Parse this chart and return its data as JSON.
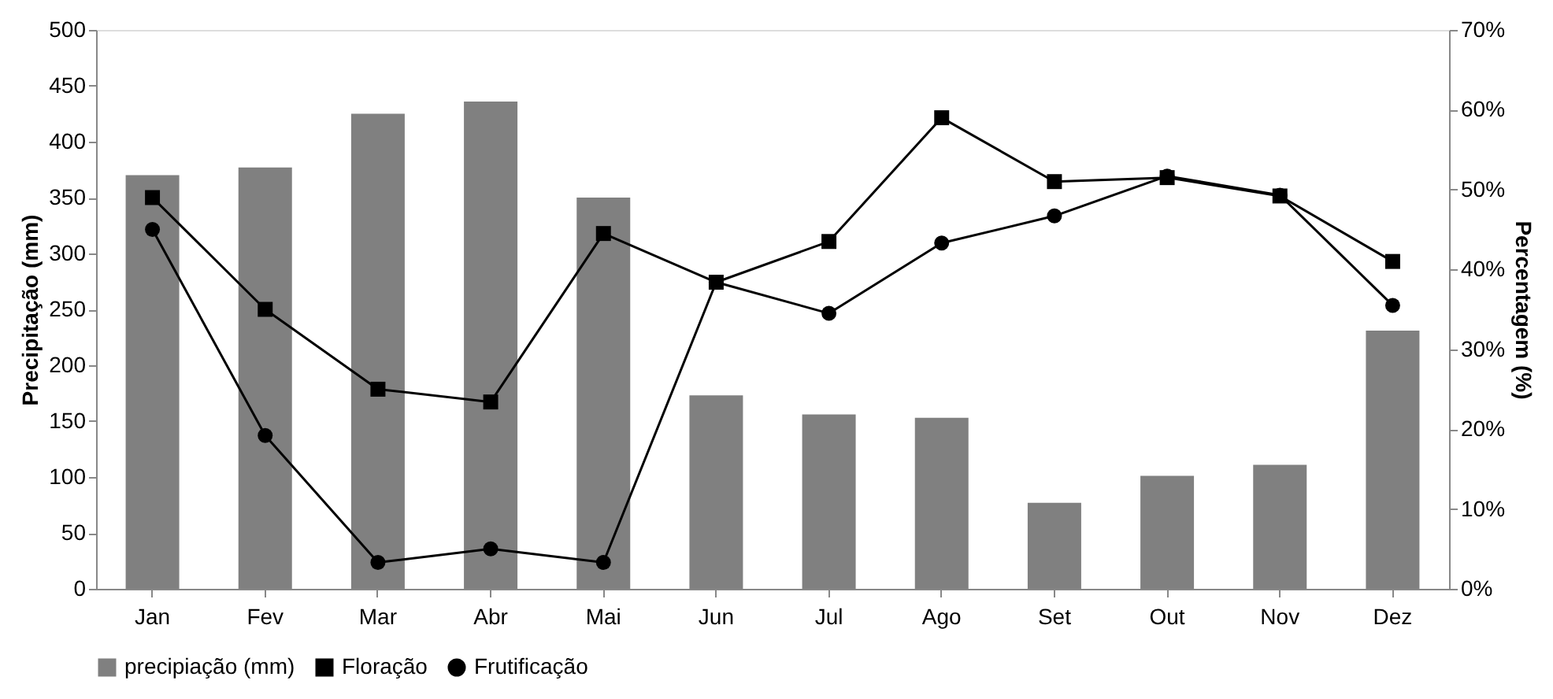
{
  "chart_data": {
    "type": "bar",
    "categories": [
      "Jan",
      "Fev",
      "Mar",
      "Abr",
      "Mai",
      "Jun",
      "Jul",
      "Ago",
      "Set",
      "Out",
      "Nov",
      "Dez"
    ],
    "series": [
      {
        "name": "precipiação (mm)",
        "color": "#808080",
        "values": [
          370,
          377,
          425,
          436,
          350,
          173,
          156,
          153,
          77,
          101,
          111,
          231
        ]
      },
      {
        "name": "Floração",
        "type": "line",
        "axis": "y2",
        "marker": "square",
        "color": "#000000",
        "values": [
          49,
          35,
          25,
          23.4,
          44.5,
          38.4,
          43.5,
          59,
          51,
          51.5,
          49.2,
          41
        ]
      },
      {
        "name": "Frutificação",
        "type": "line",
        "axis": "y2",
        "marker": "circle",
        "color": "#000000",
        "values": [
          45,
          19.2,
          3.3,
          5,
          3.3,
          38.4,
          34.5,
          43.3,
          46.7,
          51.7,
          49.3,
          35.5
        ]
      }
    ],
    "ylabel": "Precipitação (mm)",
    "y2label": "Percentagem (%)",
    "ylim": [
      0,
      500
    ],
    "yticks": [
      0,
      50,
      100,
      150,
      200,
      250,
      300,
      350,
      400,
      450,
      500
    ],
    "y2lim": [
      0,
      70
    ],
    "y2ticks": [
      {
        "value": 0,
        "label": "0%"
      },
      {
        "value": 10,
        "label": "10%"
      },
      {
        "value": 20,
        "label": "20%"
      },
      {
        "value": 30,
        "label": "30%"
      },
      {
        "value": 40,
        "label": "40%"
      },
      {
        "value": 50,
        "label": "50%"
      },
      {
        "value": 60,
        "label": "60%"
      },
      {
        "value": 70,
        "label": "70%"
      }
    ],
    "legend": "bottom",
    "grid": false
  }
}
